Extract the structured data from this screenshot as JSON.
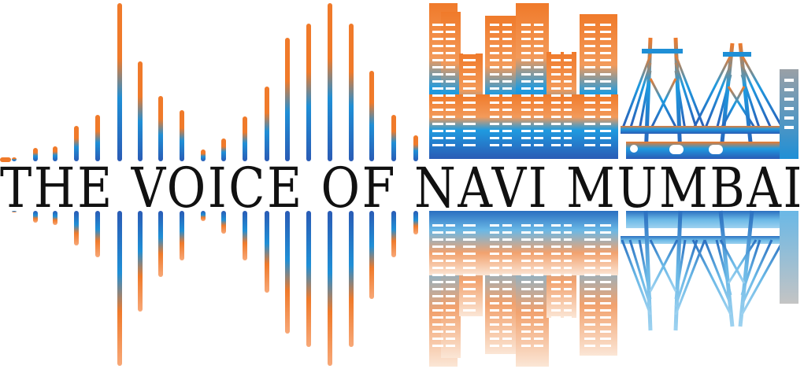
{
  "logo": {
    "title": "THE VOICE OF NAVI MUMBAI",
    "colors": {
      "orange": "#f07a2a",
      "blue": "#1f8fd6",
      "deep_blue": "#2a5bb5",
      "light_blue": "#6ab8e6",
      "peach": "#f7c9a3",
      "grey": "#9aa0a6",
      "text": "#111111"
    },
    "icons": [
      "sound-wave-icon",
      "city-skyline-icon",
      "cable-stayed-bridge-icon"
    ]
  }
}
